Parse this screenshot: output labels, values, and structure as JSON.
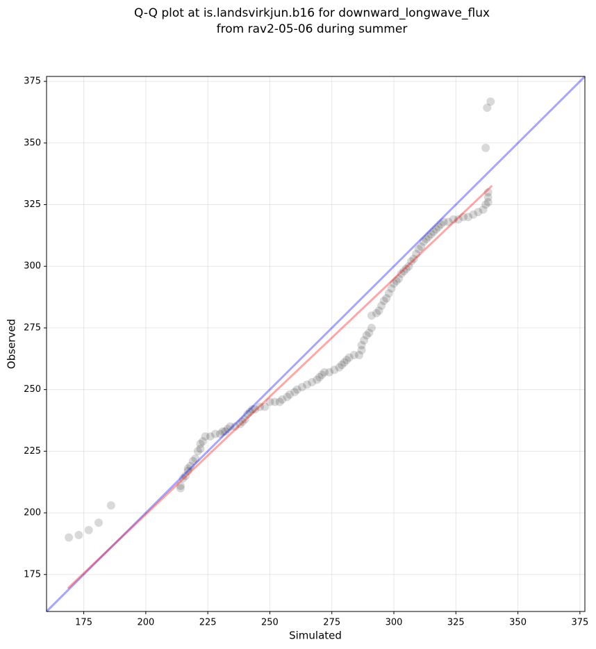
{
  "chart_data": {
    "type": "scatter",
    "title": [
      "Q-Q plot at is.landsvirkjun.b16 for downward_longwave_flux",
      "from rav2-05-06 during summer"
    ],
    "x_label": "Simulated",
    "y_label": "Observed",
    "xlim": [
      160,
      377
    ],
    "ylim": [
      160,
      377
    ],
    "xticks": [
      175,
      200,
      225,
      250,
      275,
      300,
      325,
      350,
      375
    ],
    "yticks": [
      175,
      200,
      225,
      250,
      275,
      300,
      325,
      350,
      375
    ],
    "grid": true,
    "point_color": "#000000",
    "point_alpha": 0.15,
    "x": [
      169,
      173,
      177,
      181,
      186,
      214,
      214,
      215,
      216,
      217,
      217,
      218,
      219,
      220,
      221,
      222,
      222,
      223,
      224,
      226,
      228,
      230,
      231,
      232,
      233,
      234,
      236,
      238,
      239,
      240,
      241,
      242,
      243,
      244,
      246,
      248,
      250,
      252,
      254,
      255,
      257,
      258,
      260,
      261,
      263,
      265,
      267,
      269,
      270,
      271,
      272,
      274,
      276,
      278,
      279,
      280,
      281,
      282,
      284,
      286,
      287,
      287,
      288,
      289,
      290,
      291,
      291,
      293,
      294,
      295,
      296,
      297,
      298,
      299,
      300,
      301,
      302,
      303,
      304,
      305,
      306,
      307,
      308,
      309,
      310,
      311,
      312,
      313,
      314,
      315,
      316,
      317,
      318,
      319,
      320,
      322,
      324,
      326,
      328,
      330,
      332,
      334,
      336,
      337,
      338,
      338,
      338,
      337,
      337.6,
      339
    ],
    "y": [
      190,
      191,
      193,
      196,
      203,
      210,
      211,
      214,
      215,
      217,
      218,
      219,
      221,
      222,
      225,
      226,
      228,
      229,
      231,
      231,
      232,
      232,
      233,
      233,
      234,
      235,
      235,
      236,
      237,
      238,
      240,
      241,
      242,
      242,
      243,
      243,
      245,
      245,
      245,
      246,
      247,
      248,
      249,
      250,
      251,
      252,
      253,
      254,
      255,
      256,
      257,
      257,
      258,
      259,
      260,
      261,
      262,
      263,
      264,
      264,
      266,
      268,
      270,
      272,
      273,
      275,
      280,
      281,
      282,
      284,
      286,
      287,
      289,
      291,
      293,
      294,
      295,
      297,
      298,
      299,
      300,
      302,
      303,
      305,
      307,
      308,
      310,
      311,
      312,
      313,
      314,
      315,
      316,
      317,
      318,
      318,
      319,
      319,
      320,
      320,
      321,
      322,
      323,
      325,
      326,
      328,
      330,
      348,
      364.3,
      366.8
    ],
    "identity_line": {
      "color": "#0000ff"
    },
    "fit_line": {
      "color": "#ff0000",
      "x": [
        168.6,
        339.6
      ],
      "y": [
        169.4,
        332.7
      ]
    }
  }
}
